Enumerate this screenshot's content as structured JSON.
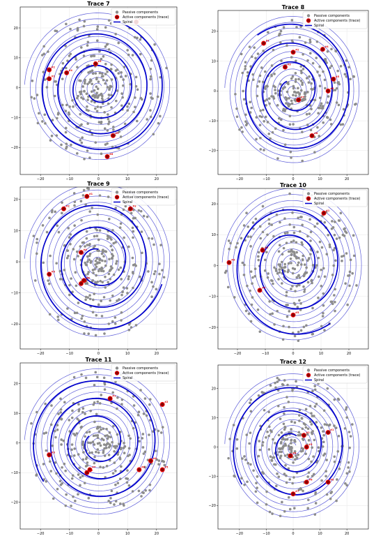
{
  "legend": {
    "passive": "Passive components",
    "active": "Active components (trace)",
    "spiral": "Spiral"
  },
  "colors": {
    "spiral_rings": "#5a5ad8",
    "trace": "#0000cc",
    "passive": "#8c8c8c",
    "active_fill": "#8b0000",
    "active_edge": "#ff0000",
    "annotation": "#e00000",
    "grid": "#e6e6e6"
  },
  "chart_data": [
    {
      "type": "scatter",
      "title": "Trace 7",
      "xlim": [
        -27,
        27
      ],
      "ylim": [
        -29,
        27
      ],
      "xticks": [
        -20,
        -10,
        0,
        10,
        20
      ],
      "yticks": [
        -20,
        -10,
        0,
        10,
        20
      ],
      "grid": true,
      "legend_position": "top-right",
      "active_points": [
        {
          "label": "#2",
          "x": -17,
          "y": 6
        },
        {
          "label": "#1",
          "x": -17,
          "y": 3
        },
        {
          "label": "#4",
          "x": -11,
          "y": 5
        },
        {
          "label": "#3",
          "x": -1,
          "y": 8
        },
        {
          "label": "#5",
          "x": 5,
          "y": -16
        },
        {
          "label": "#6",
          "x": 3,
          "y": -23
        },
        {
          "label": "#7",
          "x": 13,
          "y": 22
        }
      ]
    },
    {
      "type": "scatter",
      "title": "Trace 8",
      "xlim": [
        -28,
        28
      ],
      "ylim": [
        -28,
        27
      ],
      "xticks": [
        -20,
        -10,
        0,
        10,
        20
      ],
      "yticks": [
        -20,
        -10,
        0,
        10,
        20
      ],
      "grid": true,
      "legend_position": "top-right",
      "active_points": [
        {
          "label": "#1",
          "x": -11,
          "y": 16
        },
        {
          "label": "#2",
          "x": 0,
          "y": 13
        },
        {
          "label": "#3",
          "x": -3,
          "y": 8
        },
        {
          "label": "#4",
          "x": 11,
          "y": 14
        },
        {
          "label": "#5",
          "x": 15,
          "y": 4
        },
        {
          "label": "#6",
          "x": 13,
          "y": 0
        },
        {
          "label": "#7",
          "x": 2,
          "y": -3
        },
        {
          "label": "#8",
          "x": 7,
          "y": -15
        }
      ]
    },
    {
      "type": "scatter",
      "title": "Trace 9",
      "xlim": [
        -27,
        27
      ],
      "ylim": [
        -28,
        24
      ],
      "xticks": [
        -20,
        -10,
        0,
        10,
        20
      ],
      "yticks": [
        -20,
        -10,
        0,
        10,
        20
      ],
      "grid": true,
      "legend_position": "top-right",
      "active_points": [
        {
          "label": "#1",
          "x": -4,
          "y": 21
        },
        {
          "label": "#2",
          "x": -12,
          "y": 17
        },
        {
          "label": "#3",
          "x": 11,
          "y": 17
        },
        {
          "label": "#4",
          "x": -6,
          "y": 3
        },
        {
          "label": "#5",
          "x": -17,
          "y": -4
        },
        {
          "label": "#6",
          "x": -5,
          "y": -6
        },
        {
          "label": "#7",
          "x": -6,
          "y": -7
        }
      ]
    },
    {
      "type": "scatter",
      "title": "Trace 10",
      "xlim": [
        -27,
        27
      ],
      "ylim": [
        -27,
        25
      ],
      "xticks": [
        -20,
        -10,
        0,
        10,
        20
      ],
      "yticks": [
        -20,
        -10,
        0,
        10,
        20
      ],
      "grid": true,
      "legend_position": "top-right",
      "active_points": [
        {
          "label": "#1",
          "x": 11,
          "y": 17
        },
        {
          "label": "#2",
          "x": -11,
          "y": 5
        },
        {
          "label": "#3",
          "x": -23,
          "y": 1
        },
        {
          "label": "#4",
          "x": -12,
          "y": -8
        },
        {
          "label": "#5",
          "x": 0,
          "y": -16
        }
      ]
    },
    {
      "type": "scatter",
      "title": "Trace 11",
      "xlim": [
        -27,
        27
      ],
      "ylim": [
        -29,
        27
      ],
      "xticks": [
        -20,
        -10,
        0,
        10,
        20
      ],
      "yticks": [
        -20,
        -10,
        0,
        10,
        20
      ],
      "grid": true,
      "legend_position": "top-right",
      "active_points": [
        {
          "label": "#1",
          "x": 4,
          "y": 15
        },
        {
          "label": "#2",
          "x": 22,
          "y": 13
        },
        {
          "label": "#3",
          "x": -17,
          "y": -4
        },
        {
          "label": "#4",
          "x": 18,
          "y": -6
        },
        {
          "label": "#5",
          "x": 22,
          "y": -9
        },
        {
          "label": "#6",
          "x": 14,
          "y": -9
        },
        {
          "label": "#7",
          "x": -3,
          "y": -9
        },
        {
          "label": "#8",
          "x": -4,
          "y": -10
        }
      ]
    },
    {
      "type": "scatter",
      "title": "Trace 12",
      "xlim": [
        -28,
        28
      ],
      "ylim": [
        -28,
        28
      ],
      "xticks": [
        -20,
        -10,
        0,
        10,
        20
      ],
      "yticks": [
        -20,
        -10,
        0,
        10,
        20
      ],
      "grid": true,
      "legend_position": "top-right",
      "active_points": [
        {
          "label": "#1",
          "x": 13,
          "y": 5
        },
        {
          "label": "#2",
          "x": 4,
          "y": 4
        },
        {
          "label": "#3",
          "x": 5,
          "y": 0
        },
        {
          "label": "#4",
          "x": -1,
          "y": -3
        },
        {
          "label": "#5",
          "x": 13,
          "y": -12
        },
        {
          "label": "#6",
          "x": 5,
          "y": -12
        },
        {
          "label": "#7",
          "x": 0,
          "y": -16
        }
      ]
    }
  ]
}
